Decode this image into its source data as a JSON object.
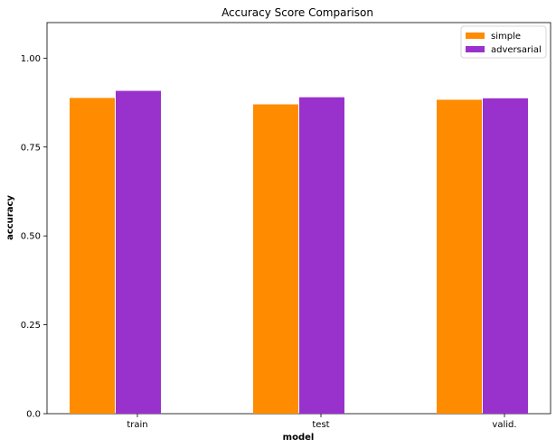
{
  "chart_data": {
    "type": "bar",
    "title": "Accuracy Score Comparison",
    "xlabel": "model",
    "ylabel": "accuracy",
    "categories": [
      "train",
      "test",
      "valid."
    ],
    "series": [
      {
        "name": "simple",
        "color": "#ff8c00",
        "values": [
          0.888,
          0.87,
          0.883
        ]
      },
      {
        "name": "adversarial",
        "color": "#9932cc",
        "values": [
          0.908,
          0.89,
          0.887
        ]
      }
    ],
    "ylim": [
      0,
      1.1
    ],
    "yticks": [
      "0.0",
      "0.25",
      "0.50",
      "0.75",
      "1.00"
    ],
    "ytick_values": [
      0,
      0.25,
      0.5,
      0.75,
      1.0
    ],
    "grid": false,
    "legend_position": "top-right"
  }
}
